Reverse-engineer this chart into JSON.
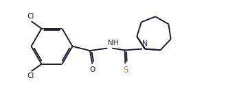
{
  "background": "#ffffff",
  "bond_color": "#1a1a2e",
  "cl_color": "#1a1a2e",
  "n_color": "#1a1a2e",
  "o_color": "#1a1a2e",
  "s_color": "#b8860b",
  "line_width": 1.4,
  "font_size": 7.5,
  "figsize": [
    3.45,
    1.39
  ],
  "dpi": 100,
  "xlim": [
    0,
    9.5
  ],
  "ylim": [
    0,
    3.9
  ]
}
